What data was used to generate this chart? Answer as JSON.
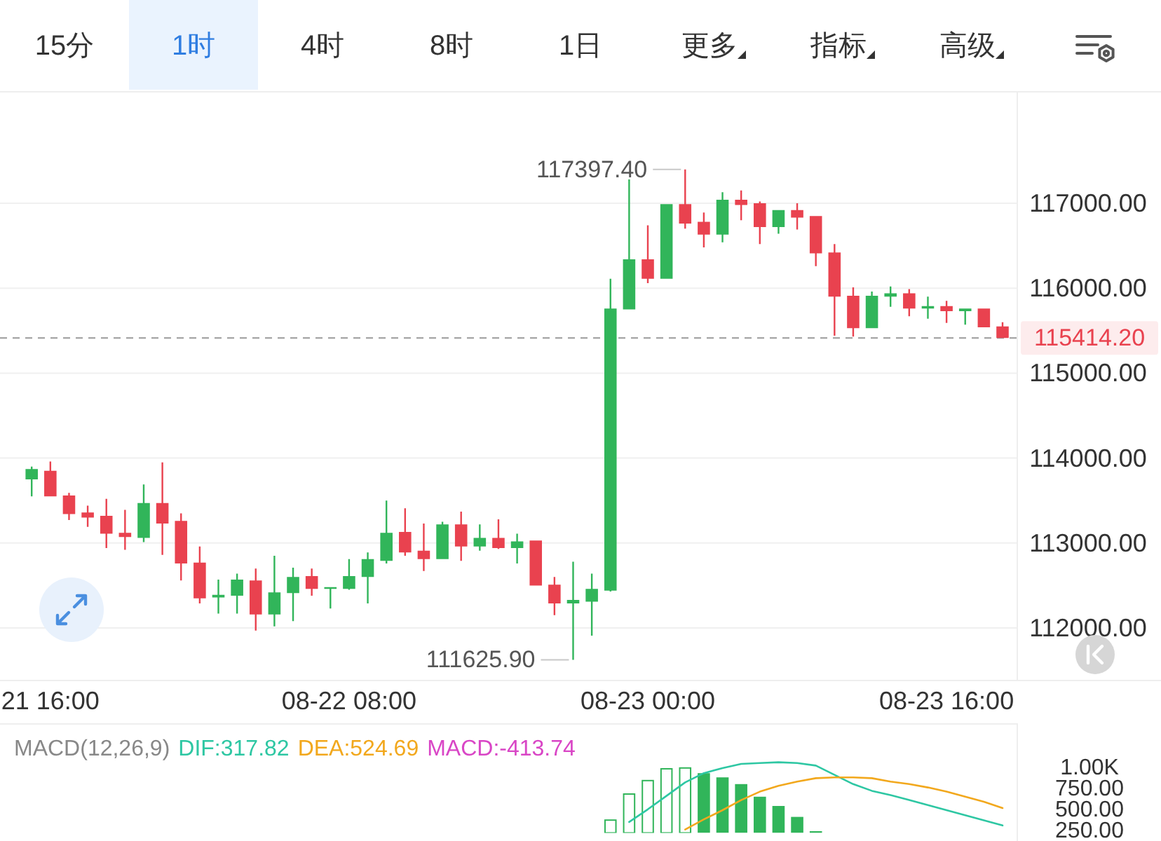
{
  "chart_data": [
    {
      "type": "other",
      "annotations": [
        "15分",
        "1时",
        "4时",
        "8时",
        "1日",
        "更多",
        "指标",
        "高级"
      ]
    },
    {
      "type": "candlestick",
      "categories": [
        null,
        "21 16:00",
        null,
        null,
        null,
        null,
        null,
        null,
        null,
        null,
        null,
        null,
        null,
        null,
        null,
        null,
        null,
        "08-22 08:00",
        null,
        null,
        null,
        null,
        null,
        null,
        null,
        null,
        null,
        null,
        null,
        null,
        null,
        null,
        null,
        "08-23 00:00",
        null,
        null,
        null,
        null,
        null,
        null,
        null,
        null,
        null,
        null,
        null,
        null,
        null,
        null,
        null,
        "08-23 16:00",
        null,
        null,
        null
      ],
      "ohlc": [
        [
          113750,
          113900,
          113550,
          113870
        ],
        [
          113850,
          113960,
          113550,
          113550
        ],
        [
          113560,
          113590,
          113270,
          113340
        ],
        [
          113360,
          113440,
          113190,
          113300
        ],
        [
          113320,
          113520,
          112940,
          113110
        ],
        [
          113120,
          113390,
          112920,
          113070
        ],
        [
          113060,
          113690,
          113010,
          113470
        ],
        [
          113470,
          113950,
          112860,
          113230
        ],
        [
          113260,
          113350,
          112560,
          112760
        ],
        [
          112770,
          112960,
          112290,
          112350
        ],
        [
          112360,
          112570,
          112170,
          112390
        ],
        [
          112380,
          112640,
          112170,
          112570
        ],
        [
          112560,
          112700,
          111970,
          112160
        ],
        [
          112160,
          112850,
          112020,
          112420
        ],
        [
          112410,
          112710,
          112080,
          112600
        ],
        [
          112610,
          112700,
          112380,
          112460
        ],
        [
          112460,
          112480,
          112230,
          112480
        ],
        [
          112460,
          112810,
          112450,
          112610
        ],
        [
          112600,
          112890,
          112290,
          112810
        ],
        [
          112790,
          113500,
          112760,
          113120
        ],
        [
          113130,
          113410,
          112850,
          112890
        ],
        [
          112910,
          113230,
          112670,
          112810
        ],
        [
          112810,
          113250,
          112810,
          113220
        ],
        [
          113220,
          113370,
          112790,
          112960
        ],
        [
          112960,
          113220,
          112910,
          113060
        ],
        [
          113060,
          113280,
          112930,
          112940
        ],
        [
          112940,
          113110,
          112760,
          113020
        ],
        [
          113030,
          113030,
          112500,
          112500
        ],
        [
          112510,
          112600,
          112150,
          112290
        ],
        [
          112290,
          112780,
          111625.9,
          112330
        ],
        [
          112310,
          112640,
          111910,
          112460
        ],
        [
          112440,
          116110,
          112430,
          115760
        ],
        [
          115750,
          117280,
          115750,
          116340
        ],
        [
          116340,
          116740,
          116060,
          116110
        ],
        [
          116110,
          116990,
          116110,
          116990
        ],
        [
          116990,
          117397.4,
          116700,
          116760
        ],
        [
          116780,
          116890,
          116480,
          116630
        ],
        [
          116630,
          117130,
          116540,
          117040
        ],
        [
          117040,
          117150,
          116800,
          116980
        ],
        [
          117000,
          117020,
          116520,
          116720
        ],
        [
          116720,
          116920,
          116640,
          116920
        ],
        [
          116920,
          117000,
          116690,
          116830
        ],
        [
          116850,
          116850,
          116260,
          116410
        ],
        [
          116420,
          116520,
          115440,
          115900
        ],
        [
          115910,
          116010,
          115430,
          115530
        ],
        [
          115530,
          115960,
          115530,
          115910
        ],
        [
          115900,
          116020,
          115780,
          115940
        ],
        [
          115940,
          115990,
          115670,
          115760
        ],
        [
          115760,
          115900,
          115640,
          115790
        ],
        [
          115790,
          115850,
          115590,
          115730
        ],
        [
          115730,
          115760,
          115570,
          115760
        ],
        [
          115760,
          115760,
          115540,
          115540
        ],
        [
          115550,
          115600,
          115414.2,
          115414.2
        ]
      ],
      "colors": [
        "#31b55a",
        "#e9424f",
        "#e9424f",
        "#e9424f",
        "#e9424f",
        "#e9424f",
        "#31b55a",
        "#e9424f",
        "#e9424f",
        "#e9424f",
        "#31b55a",
        "#31b55a",
        "#e9424f",
        "#31b55a",
        "#31b55a",
        "#e9424f",
        "#31b55a",
        "#31b55a",
        "#31b55a",
        "#31b55a",
        "#e9424f",
        "#e9424f",
        "#31b55a",
        "#e9424f",
        "#31b55a",
        "#e9424f",
        "#31b55a",
        "#e9424f",
        "#e9424f",
        "#31b55a",
        "#31b55a",
        "#31b55a",
        "#31b55a",
        "#e9424f",
        "#31b55a",
        "#e9424f",
        "#e9424f",
        "#31b55a",
        "#e9424f",
        "#e9424f",
        "#31b55a",
        "#e9424f",
        "#e9424f",
        "#e9424f",
        "#e9424f",
        "#31b55a",
        "#31b55a",
        "#e9424f",
        "#31b55a",
        "#e9424f",
        "#31b55a",
        "#e9424f",
        "#e9424f"
      ],
      "ylim": [
        111390,
        118270
      ],
      "yticks": [
        {
          "value": 112000,
          "label": "112000.00"
        },
        {
          "value": 113000,
          "label": "113000.00"
        },
        {
          "value": 114000,
          "label": "114000.00"
        },
        {
          "value": 115000,
          "label": "115000.00"
        },
        {
          "value": 116000,
          "label": "116000.00"
        },
        {
          "value": 117000,
          "label": "117000.00"
        }
      ],
      "grid": "y",
      "ref_lines": [
        {
          "axis": "y",
          "value": 115414.2,
          "label": "115414.20",
          "color": "#9a9a9a",
          "line_style": "dashed"
        }
      ],
      "annotations": [
        "117397.40",
        "111625.90"
      ]
    },
    {
      "type": "bar",
      "title": "MACD(12,26,9)",
      "categories": [
        null,
        null,
        null,
        null,
        null,
        null,
        null,
        null,
        null,
        null,
        null,
        null,
        null,
        null,
        null,
        null,
        null,
        null,
        null,
        null,
        null,
        null,
        null,
        null,
        null,
        null,
        null,
        null,
        null,
        null,
        null,
        null,
        null,
        null,
        null,
        null,
        null,
        null,
        null,
        null,
        null,
        null,
        null,
        null,
        null,
        null,
        null,
        null,
        null,
        null,
        null,
        null,
        null
      ],
      "tick_labels": "y",
      "legend": "top left",
      "ylim": [
        230,
        1550
      ],
      "yticks": [
        {
          "value": 250,
          "label": "250.00"
        },
        {
          "value": 500,
          "label": "500.00"
        },
        {
          "value": 750,
          "label": "750.00"
        },
        {
          "value": 1000,
          "label": "1.00K"
        }
      ],
      "series": [
        {
          "name": "DIF:317.82",
          "type": "line",
          "color": "#2ec7a3",
          "values": [
            null,
            null,
            null,
            null,
            null,
            null,
            null,
            null,
            null,
            null,
            null,
            null,
            null,
            null,
            null,
            null,
            null,
            null,
            null,
            null,
            null,
            null,
            null,
            null,
            null,
            null,
            null,
            null,
            null,
            null,
            null,
            null,
            360,
            510,
            670,
            830,
            940,
            1000,
            1050,
            1060,
            1070,
            1060,
            1030,
            920,
            810,
            730,
            680,
            620,
            560,
            500,
            440,
            380,
            317.82
          ]
        },
        {
          "name": "DEA:524.69",
          "type": "line",
          "color": "#f2a81d",
          "values": [
            null,
            null,
            null,
            null,
            null,
            null,
            null,
            null,
            null,
            null,
            null,
            null,
            null,
            null,
            null,
            null,
            null,
            null,
            null,
            null,
            null,
            null,
            null,
            null,
            null,
            null,
            null,
            null,
            null,
            null,
            null,
            null,
            null,
            null,
            null,
            270,
            390,
            500,
            620,
            720,
            790,
            840,
            880,
            890,
            890,
            880,
            840,
            810,
            770,
            720,
            660,
            600,
            524.69
          ]
        },
        {
          "name": "MACD:-413.74",
          "type": "bar",
          "color": "#d946c6",
          "values": [
            null,
            null,
            null,
            null,
            null,
            null,
            null,
            null,
            null,
            null,
            null,
            null,
            null,
            null,
            null,
            null,
            null,
            null,
            null,
            null,
            null,
            null,
            null,
            null,
            null,
            null,
            null,
            null,
            null,
            null,
            null,
            390,
            700,
            860,
            1000,
            1010,
            940,
            890,
            810,
            660,
            550,
            420,
            250,
            null,
            null,
            null,
            null,
            null,
            null,
            null,
            null,
            null,
            null
          ],
          "colors": [
            null,
            null,
            null,
            null,
            null,
            null,
            null,
            null,
            null,
            null,
            null,
            null,
            null,
            null,
            null,
            null,
            null,
            null,
            null,
            null,
            null,
            null,
            null,
            null,
            null,
            null,
            null,
            null,
            null,
            null,
            null,
            "#31b55a",
            "#31b55a",
            "#31b55a",
            "#31b55a",
            "#31b55a",
            "#31b55a",
            "#31b55a",
            "#31b55a",
            "#31b55a",
            "#31b55a",
            "#31b55a",
            "#31b55a",
            null,
            null,
            null,
            null,
            null,
            null,
            null,
            null,
            null,
            null
          ]
        }
      ]
    }
  ]
}
